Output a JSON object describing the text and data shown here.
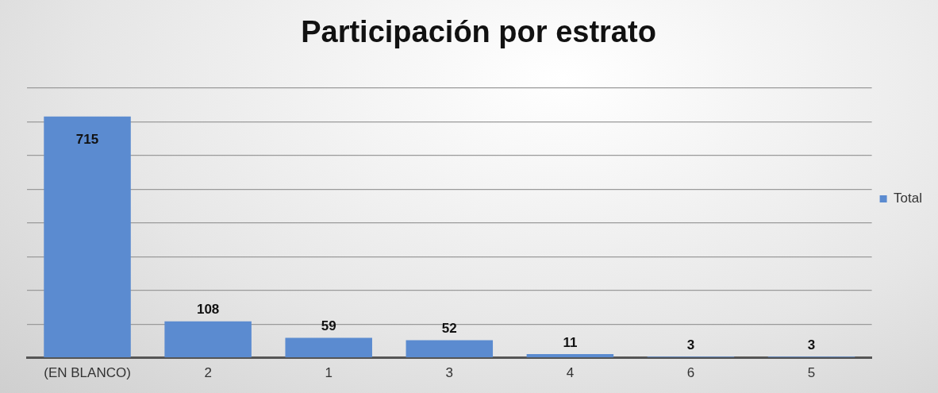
{
  "chart_data": {
    "type": "bar",
    "title": "Participación por estrato",
    "categories": [
      "(EN BLANCO)",
      "2",
      "1",
      "3",
      "4",
      "6",
      "5"
    ],
    "series": [
      {
        "name": "Total",
        "color": "#5b8bd0",
        "values": [
          715,
          108,
          59,
          52,
          11,
          3,
          3
        ]
      }
    ],
    "ylim": [
      0,
      800
    ],
    "yticks": [
      {
        "value": 0,
        "label": null
      },
      {
        "value": 100,
        "label": null
      },
      {
        "value": 200,
        "label": null
      },
      {
        "value": 300,
        "label": null
      },
      {
        "value": 400,
        "label": null
      },
      {
        "value": 500,
        "label": null
      },
      {
        "value": 600,
        "label": null
      },
      {
        "value": 700,
        "label": null
      },
      {
        "value": 800,
        "label": null
      }
    ],
    "tick_labels": "x",
    "grid": "y",
    "legend": "right",
    "data_labels": true
  }
}
